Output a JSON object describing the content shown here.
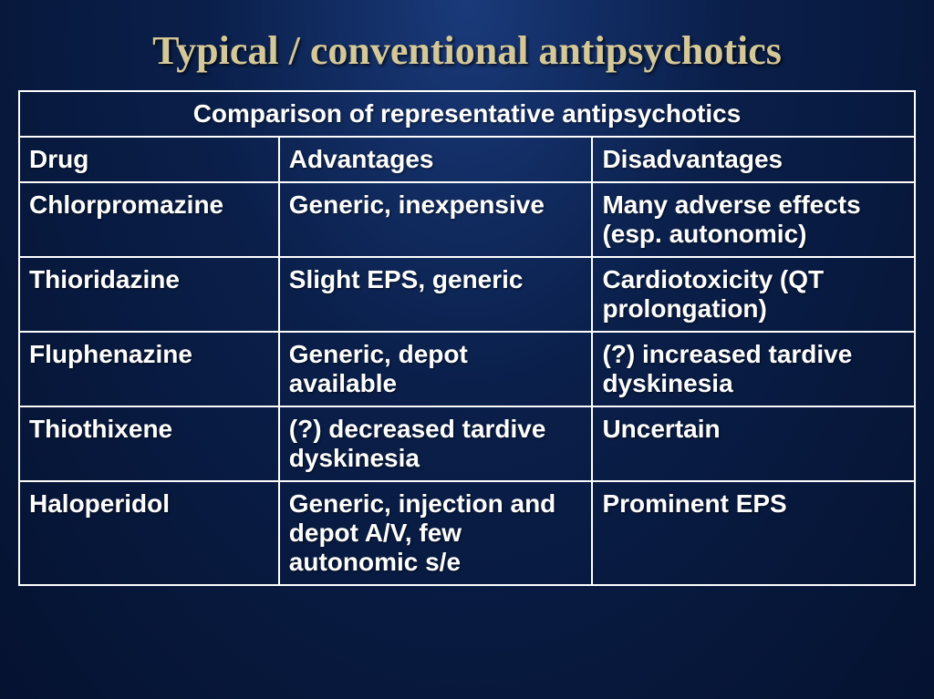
{
  "slide": {
    "title": "Typical / conventional antipsychotics",
    "title_color": "#d4c898",
    "title_fontsize": 44,
    "background_gradient": [
      "#1a3a7a",
      "#0a1f4a",
      "#051230"
    ],
    "border_color": "#ffffff",
    "text_color": "#ffffff",
    "cell_fontsize": 28
  },
  "table": {
    "caption": "Comparison of representative antipsychotics",
    "columns": [
      "Drug",
      "Advantages",
      "Disadvantages"
    ],
    "column_widths_pct": [
      29,
      35,
      36
    ],
    "rows": [
      {
        "drug": "Chlorpromazine",
        "advantages": "Generic, inexpensive",
        "disadvantages": "Many adverse effects (esp. autonomic)"
      },
      {
        "drug": "Thioridazine",
        "advantages": "Slight EPS, generic",
        "disadvantages": "Cardiotoxicity (QT prolongation)"
      },
      {
        "drug": "Fluphenazine",
        "advantages": "Generic, depot available",
        "disadvantages": "(?) increased tardive dyskinesia"
      },
      {
        "drug": "Thiothixene",
        "advantages": "(?) decreased tardive dyskinesia",
        "disadvantages": "Uncertain"
      },
      {
        "drug": "Haloperidol",
        "advantages": "Generic, injection and depot A/V, few autonomic s/e",
        "disadvantages": "Prominent EPS"
      }
    ]
  }
}
